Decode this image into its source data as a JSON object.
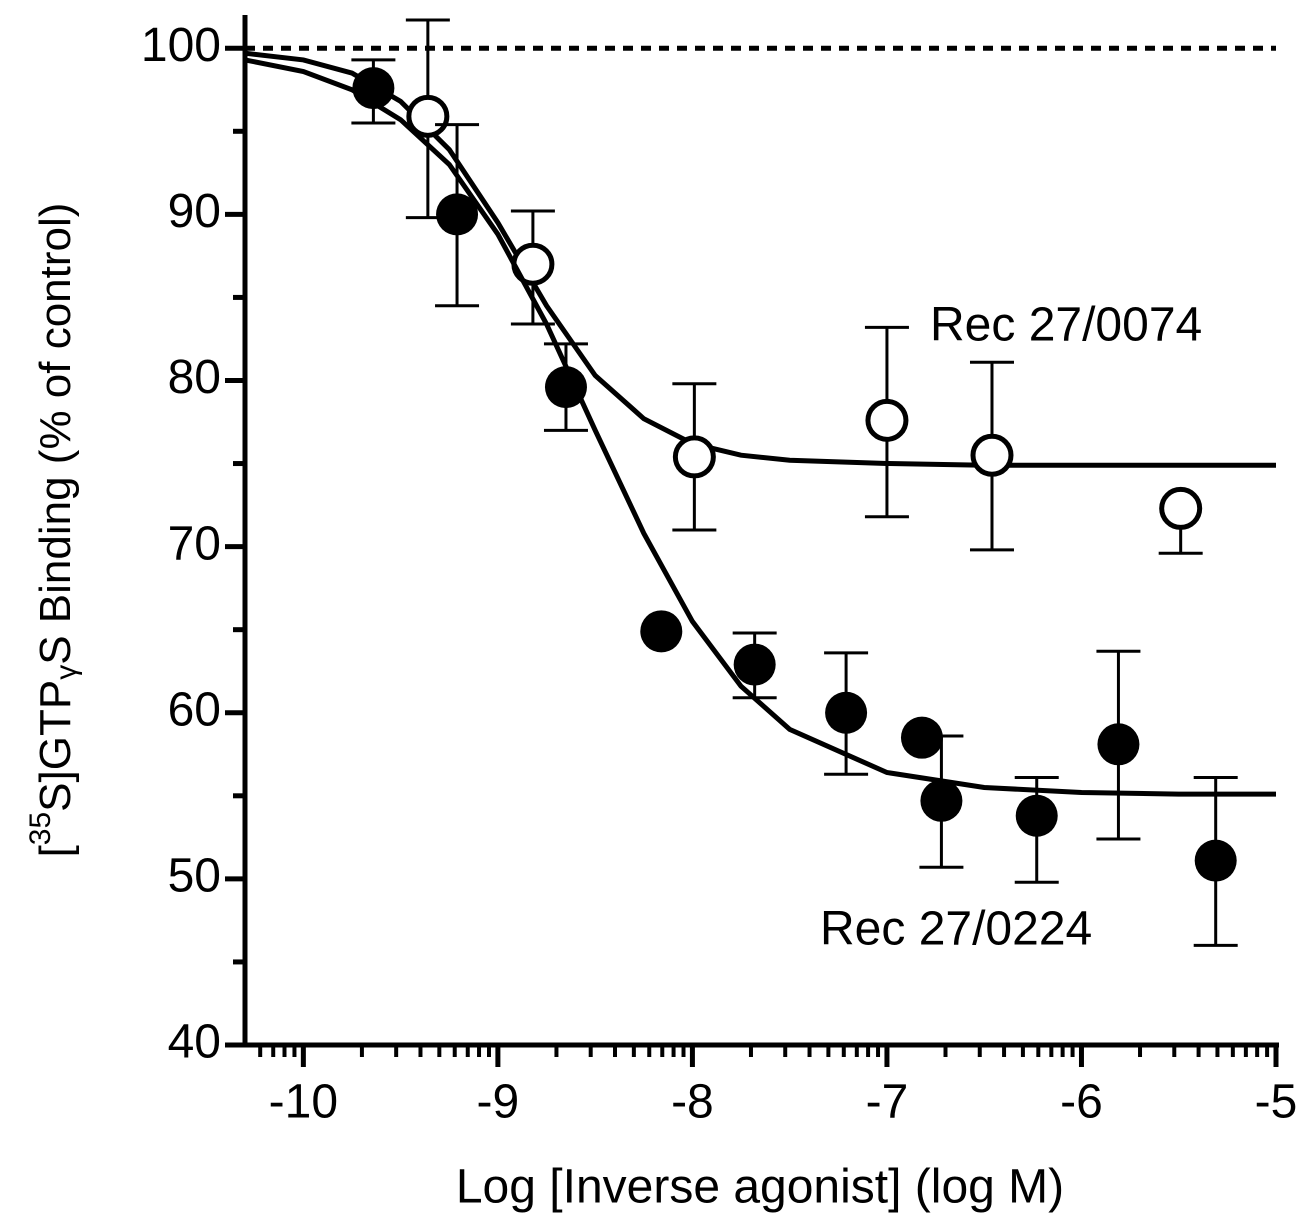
{
  "chart_data": {
    "type": "scatter",
    "x_label": "Log [Inverse agonist] (log M)",
    "y_label_parts": [
      "[",
      "35",
      "S]GTP",
      "γ",
      "S Binding (% of control)"
    ],
    "xlim": [
      -10.3,
      -5
    ],
    "xticks": [
      -10,
      -9,
      -8,
      -7,
      -6,
      -5
    ],
    "ylim": [
      40,
      102
    ],
    "yticks": [
      40,
      50,
      60,
      70,
      80,
      90,
      100
    ],
    "yticks_minor": [
      45,
      55,
      65,
      75,
      85,
      95
    ],
    "reference_line": 100,
    "fit_x": [
      -10.3,
      -10,
      -9.75,
      -9.5,
      -9.25,
      -9,
      -8.75,
      -8.5,
      -8.25,
      -8,
      -7.75,
      -7.5,
      -7,
      -6.5,
      -6,
      -5.5,
      -5
    ],
    "series": [
      {
        "name": "Rec 27/0074",
        "marker": "open",
        "color": "#000000",
        "x": [
          -9.36,
          -8.82,
          -7.99,
          -7.0,
          -6.46,
          -5.49
        ],
        "values": [
          95.9,
          87.0,
          75.4,
          77.6,
          75.5,
          72.3
        ],
        "err_plus": [
          5.8,
          3.2,
          4.4,
          5.6,
          5.6,
          null
        ],
        "err_minus": [
          6.1,
          3.6,
          4.4,
          5.8,
          5.7,
          2.7
        ],
        "fit_values": [
          99.7,
          99.3,
          98.5,
          96.8,
          93.9,
          89.5,
          84.5,
          80.3,
          77.7,
          76.2,
          75.5,
          75.2,
          75.0,
          74.9,
          74.9,
          74.9,
          74.9
        ]
      },
      {
        "name": "Rec 27/0224",
        "marker": "filled",
        "color": "#000000",
        "x": [
          -9.64,
          -9.21,
          -8.65,
          -8.16,
          -7.68,
          -7.21,
          -6.82,
          -6.72,
          -6.23,
          -5.81,
          -5.31
        ],
        "values": [
          97.6,
          90.0,
          79.6,
          64.9,
          62.9,
          60.0,
          58.5,
          54.7,
          53.8,
          58.1,
          51.1
        ],
        "err_plus": [
          1.7,
          5.4,
          2.6,
          null,
          1.9,
          3.6,
          null,
          3.9,
          2.3,
          5.6,
          5.0
        ],
        "err_minus": [
          2.1,
          5.5,
          2.6,
          null,
          2.0,
          3.7,
          null,
          4.0,
          4.0,
          5.7,
          5.1
        ],
        "fit_values": [
          99.3,
          98.6,
          97.5,
          95.7,
          93.0,
          88.8,
          83.4,
          77.0,
          70.8,
          65.5,
          61.6,
          59.0,
          56.4,
          55.5,
          55.2,
          55.1,
          55.1
        ]
      }
    ]
  }
}
